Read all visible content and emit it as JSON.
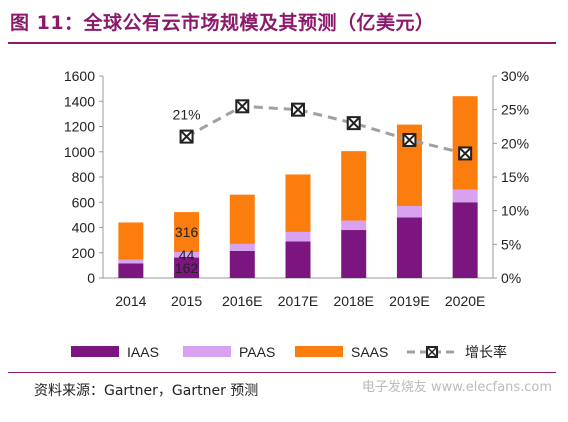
{
  "title": "图 11：全球公有云市场规模及其预测（亿美元）",
  "source": "资料来源：Gartner，Gartner 预测",
  "watermark": "电子发烧友 www.elecfans.com",
  "colors": {
    "IAAS": "#7b1580",
    "PAAS": "#d9a2f0",
    "SAAS": "#fb7d0d",
    "line": "#a0a0a0",
    "marker": "#222222",
    "axis": "#9a9a9a",
    "title": "#8b1a6b"
  },
  "chart_data": {
    "type": "bar",
    "stacked": true,
    "categories": [
      "2014",
      "2015",
      "2016E",
      "2017E",
      "2018E",
      "2019E",
      "2020E"
    ],
    "series": [
      {
        "name": "IAAS",
        "values": [
          115,
          162,
          215,
          290,
          380,
          480,
          600
        ]
      },
      {
        "name": "PAAS",
        "values": [
          30,
          44,
          55,
          75,
          75,
          90,
          100
        ]
      },
      {
        "name": "SAAS",
        "values": [
          295,
          316,
          390,
          455,
          550,
          645,
          740
        ]
      }
    ],
    "line_series": {
      "name": "增长率",
      "values": [
        null,
        21,
        25.5,
        25,
        23,
        20.5,
        18.5
      ],
      "axis": "right"
    },
    "data_labels": [
      {
        "category": "2015",
        "series": "SAAS",
        "text": "316"
      },
      {
        "category": "2015",
        "series": "PAAS",
        "text": "44"
      },
      {
        "category": "2015",
        "series": "IAAS",
        "text": "162"
      },
      {
        "category": "2015",
        "series": "增长率",
        "text": "21%"
      }
    ],
    "y_left": {
      "range": [
        0,
        1600
      ],
      "ticks": [
        "0",
        "200",
        "400",
        "600",
        "800",
        "1000",
        "1200",
        "1400",
        "1600"
      ]
    },
    "y_right": {
      "range": [
        0,
        30
      ],
      "ticks": [
        "0%",
        "5%",
        "10%",
        "15%",
        "20%",
        "25%",
        "30%"
      ]
    },
    "grid": false,
    "legend_position": "bottom"
  }
}
